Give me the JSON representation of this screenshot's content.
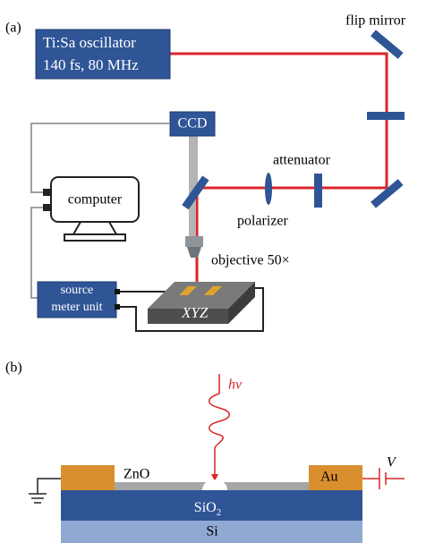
{
  "panel_a": {
    "label": "(a)",
    "laser": [
      "Ti:Sa oscillator",
      "140 fs, 80 MHz"
    ],
    "flip_mirror": "flip mirror",
    "ccd": "CCD",
    "attenuator": "attenuator",
    "polarizer": "polarizer",
    "computer": "computer",
    "objective": "objective 50×",
    "source_meter": [
      "source",
      "meter unit"
    ],
    "stage": "XYZ"
  },
  "panel_b": {
    "label": "(b)",
    "photon": "hν",
    "zno": "ZnO",
    "sio2": "SiO",
    "sio2_sub": "2",
    "au": "Au",
    "voltage": "V",
    "si": "Si"
  }
}
